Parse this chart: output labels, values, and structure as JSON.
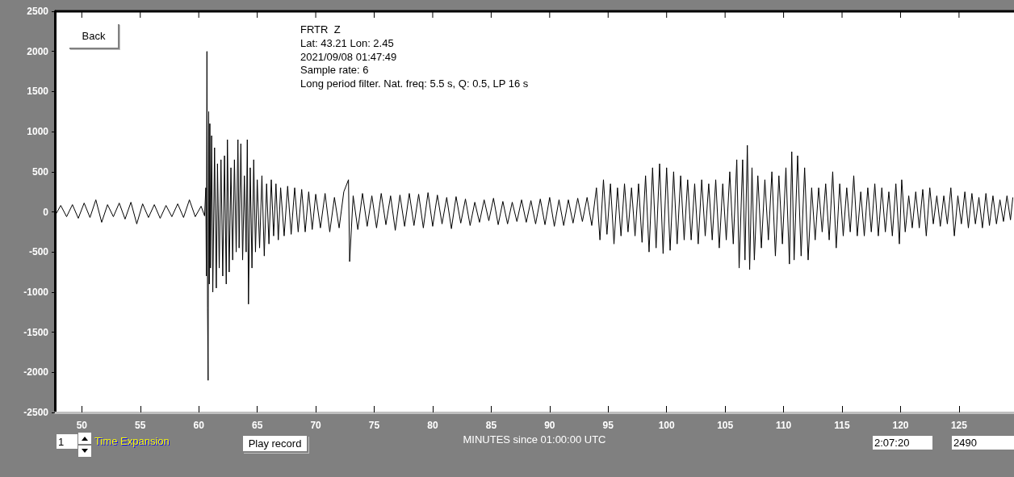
{
  "chart_data": {
    "type": "line",
    "title": "FRTR  Z",
    "xlabel": "MINUTES since 01:00:00 UTC",
    "annotations": [
      "Lat: 43.21 Lon: 2.45",
      "2021/09/08 01:47:49",
      "Sample rate: 6",
      "Long period filter. Nat. freq: 5.5 s, Q: 0.5, LP 16 s",
      "Back",
      "1",
      "Time Expansion",
      "Play record",
      "2:07:20",
      "2490"
    ],
    "xlim": [
      47.7,
      129.7
    ],
    "xticks": [
      50,
      55,
      60,
      65,
      70,
      75,
      80,
      85,
      90,
      95,
      100,
      105,
      110,
      115,
      120,
      125
    ],
    "ylim": [
      -2500,
      2500
    ],
    "yticks": [
      -2500,
      -2000,
      -1500,
      -1000,
      -500,
      0,
      500,
      1000,
      1500,
      2000,
      2500
    ],
    "grid": false,
    "marker": "none",
    "series": [
      {
        "color": "#000000",
        "x": [
          47.7,
          48.2,
          48.7,
          49.2,
          49.7,
          50.2,
          50.7,
          51.2,
          51.7,
          52.2,
          52.7,
          53.2,
          53.7,
          54.2,
          54.7,
          55.2,
          55.7,
          56.2,
          56.7,
          57.2,
          57.7,
          58.2,
          58.7,
          59.2,
          59.7,
          60.2,
          60.5,
          60.6,
          60.65,
          60.7,
          60.75,
          60.8,
          60.85,
          60.9,
          60.95,
          61.0,
          61.1,
          61.2,
          61.35,
          61.5,
          61.6,
          61.75,
          61.9,
          62.05,
          62.2,
          62.35,
          62.45,
          62.6,
          62.75,
          62.9,
          63.05,
          63.2,
          63.35,
          63.45,
          63.6,
          63.75,
          63.9,
          64.05,
          64.15,
          64.25,
          64.4,
          64.55,
          64.7,
          64.85,
          65.0,
          65.2,
          65.4,
          65.6,
          65.8,
          66.0,
          66.2,
          66.4,
          66.6,
          66.8,
          67.0,
          67.3,
          67.6,
          67.9,
          68.2,
          68.5,
          68.8,
          69.1,
          69.4,
          69.7,
          70.0,
          70.4,
          70.8,
          71.2,
          71.6,
          72.0,
          72.4,
          72.8,
          72.9,
          73.2,
          73.6,
          74.0,
          74.4,
          74.8,
          75.2,
          75.6,
          76.0,
          76.4,
          76.8,
          77.2,
          77.6,
          78.0,
          78.4,
          78.8,
          79.2,
          79.6,
          80.0,
          80.4,
          80.8,
          81.2,
          81.6,
          82.0,
          82.4,
          82.8,
          83.2,
          83.6,
          84.0,
          84.4,
          84.8,
          85.2,
          85.6,
          86.0,
          86.4,
          86.8,
          87.2,
          87.6,
          88.0,
          88.4,
          88.8,
          89.2,
          89.6,
          90.0,
          90.4,
          90.8,
          91.2,
          91.6,
          92.0,
          92.4,
          92.8,
          93.2,
          93.6,
          94.0,
          94.3,
          94.6,
          94.9,
          95.2,
          95.5,
          95.8,
          96.1,
          96.4,
          96.7,
          97.0,
          97.3,
          97.6,
          97.9,
          98.2,
          98.5,
          98.8,
          99.1,
          99.4,
          99.7,
          100.0,
          100.3,
          100.6,
          100.9,
          101.2,
          101.5,
          101.8,
          102.1,
          102.4,
          102.7,
          103.0,
          103.3,
          103.6,
          103.9,
          104.2,
          104.5,
          104.8,
          105.1,
          105.4,
          105.7,
          106.0,
          106.2,
          106.5,
          106.7,
          106.9,
          107.1,
          107.3,
          107.5,
          107.8,
          108.1,
          108.4,
          108.7,
          109.0,
          109.3,
          109.6,
          109.9,
          110.2,
          110.5,
          110.7,
          110.9,
          111.2,
          111.5,
          111.8,
          112.1,
          112.4,
          112.7,
          113.0,
          113.3,
          113.6,
          113.9,
          114.2,
          114.5,
          114.8,
          115.1,
          115.4,
          115.7,
          116.0,
          116.3,
          116.6,
          116.9,
          117.2,
          117.5,
          117.8,
          118.1,
          118.4,
          118.7,
          119.0,
          119.3,
          119.6,
          119.9,
          120.1,
          120.4,
          120.7,
          121.0,
          121.3,
          121.6,
          121.9,
          122.2,
          122.5,
          122.8,
          123.1,
          123.4,
          123.7,
          124.0,
          124.3,
          124.6,
          124.9,
          125.2,
          125.5,
          125.8,
          126.1,
          126.4,
          126.7,
          127.0,
          127.3,
          127.6,
          127.9,
          128.2,
          128.5,
          128.8,
          129.1,
          129.4,
          129.6
        ],
        "values": [
          -50,
          80,
          -60,
          90,
          -80,
          110,
          -70,
          150,
          -130,
          90,
          -60,
          110,
          -90,
          120,
          -150,
          100,
          -70,
          90,
          -80,
          80,
          -60,
          100,
          -70,
          150,
          -60,
          70,
          -50,
          300,
          -800,
          2000,
          -1200,
          -2100,
          1250,
          -900,
          1100,
          -700,
          950,
          -1000,
          800,
          -950,
          600,
          -700,
          650,
          -800,
          700,
          -900,
          900,
          -750,
          550,
          -600,
          650,
          -500,
          900,
          -450,
          850,
          -600,
          450,
          -500,
          900,
          -1150,
          550,
          -700,
          650,
          -500,
          400,
          -450,
          450,
          -550,
          350,
          -400,
          400,
          -300,
          350,
          -350,
          300,
          -300,
          320,
          -280,
          300,
          -250,
          280,
          -250,
          250,
          -220,
          220,
          -200,
          230,
          -250,
          180,
          -200,
          250,
          400,
          -620,
          200,
          -220,
          230,
          -180,
          200,
          -200,
          230,
          -160,
          200,
          -230,
          210,
          -180,
          230,
          -170,
          220,
          -200,
          240,
          -180,
          210,
          -150,
          180,
          -210,
          190,
          -140,
          160,
          -170,
          120,
          -130,
          150,
          -110,
          170,
          -160,
          130,
          -150,
          120,
          -120,
          150,
          -130,
          140,
          -150,
          160,
          -160,
          180,
          -180,
          150,
          -170,
          150,
          -140,
          170,
          -120,
          180,
          -170,
          300,
          -350,
          400,
          -280,
          350,
          -400,
          300,
          -300,
          350,
          -250,
          300,
          -300,
          350,
          -380,
          450,
          -500,
          550,
          -450,
          600,
          -520,
          550,
          -480,
          500,
          -400,
          450,
          -350,
          400,
          -350,
          350,
          -400,
          400,
          -300,
          350,
          -350,
          400,
          -450,
          350,
          -350,
          500,
          -400,
          650,
          -700,
          650,
          -600,
          830,
          -720,
          550,
          -600,
          450,
          -450,
          400,
          -350,
          500,
          -550,
          450,
          -400,
          550,
          -650,
          750,
          -600,
          700,
          -550,
          550,
          -600,
          300,
          -350,
          300,
          -250,
          350,
          -350,
          500,
          -450,
          350,
          -300,
          300,
          -250,
          450,
          -300,
          250,
          -300,
          300,
          -250,
          350,
          -300,
          300,
          -250,
          250,
          -300,
          350,
          -400,
          400,
          -250,
          200,
          -200,
          250,
          -200,
          280,
          -300,
          300,
          -150,
          200,
          -180,
          200,
          -150,
          300,
          -300,
          200,
          -150,
          250,
          -200,
          230,
          -150,
          180,
          -200,
          230,
          -170,
          200,
          -150,
          150,
          -120,
          200,
          -100,
          180
        ]
      }
    ]
  }
}
